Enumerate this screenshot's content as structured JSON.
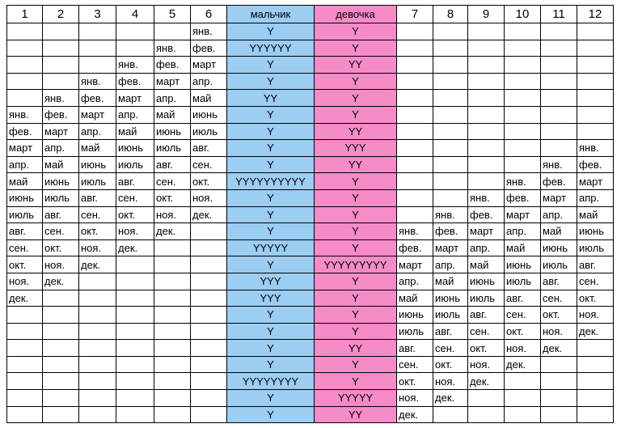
{
  "table": {
    "header": [
      "1",
      "2",
      "3",
      "4",
      "5",
      "6",
      "мальчик",
      "девочка",
      "7",
      "8",
      "9",
      "10",
      "11",
      "12"
    ],
    "rows": [
      [
        null,
        null,
        null,
        null,
        null,
        "янв.",
        "Y",
        "Y",
        null,
        null,
        null,
        null,
        null,
        null
      ],
      [
        null,
        null,
        null,
        null,
        "янв.",
        "фев.",
        "YYYYYY",
        "Y",
        null,
        null,
        null,
        null,
        null,
        null
      ],
      [
        null,
        null,
        null,
        "янв.",
        "фев.",
        "март",
        "Y",
        "YY",
        null,
        null,
        null,
        null,
        null,
        null
      ],
      [
        null,
        null,
        "янв.",
        "фев.",
        "март",
        "апр.",
        "Y",
        "Y",
        null,
        null,
        null,
        null,
        null,
        null
      ],
      [
        null,
        "янв.",
        "фев.",
        "март",
        "апр.",
        "май",
        "YY",
        "Y",
        null,
        null,
        null,
        null,
        null,
        null
      ],
      [
        "янв.",
        "фев.",
        "март",
        "апр.",
        "май",
        "июнь",
        "Y",
        "Y",
        null,
        null,
        null,
        null,
        null,
        null
      ],
      [
        "фев.",
        "март",
        "апр.",
        "май",
        "июнь",
        "июль",
        "Y",
        "YY",
        null,
        null,
        null,
        null,
        null,
        null
      ],
      [
        "март",
        "апр.",
        "май",
        "июнь",
        "июль",
        "авг.",
        "Y",
        "YYY",
        null,
        null,
        null,
        null,
        null,
        "янв."
      ],
      [
        "апр.",
        "май",
        "июнь",
        "июль",
        "авг.",
        "сен.",
        "Y",
        "YY",
        null,
        null,
        null,
        null,
        "янв.",
        "фев."
      ],
      [
        "май",
        "июнь",
        "июль",
        "авг.",
        "сен.",
        "окт.",
        "YYYYYYYYYY",
        "Y",
        null,
        null,
        null,
        "янв.",
        "фев.",
        "март"
      ],
      [
        "июнь",
        "июль",
        "авг.",
        "сен.",
        "окт.",
        "ноя.",
        "Y",
        "Y",
        null,
        null,
        "янв.",
        "фев.",
        "март",
        "апр."
      ],
      [
        "июль",
        "авг.",
        "сен.",
        "окт.",
        "ноя.",
        "дек.",
        "Y",
        "Y",
        null,
        "янв.",
        "фев.",
        "март",
        "апр.",
        "май"
      ],
      [
        "авг.",
        "сен.",
        "окт.",
        "ноя.",
        "дек.",
        null,
        "Y",
        "Y",
        "янв.",
        "фев.",
        "март",
        "апр.",
        "май",
        "июнь"
      ],
      [
        "сен.",
        "окт.",
        "ноя.",
        "дек.",
        null,
        null,
        "YYYYY",
        "Y",
        "фев.",
        "март",
        "апр.",
        "май",
        "июнь",
        "июль"
      ],
      [
        "окт.",
        "ноя.",
        "дек.",
        null,
        null,
        null,
        "Y",
        "YYYYYYYYY",
        "март",
        "апр.",
        "май",
        "июнь",
        "июль",
        "авг."
      ],
      [
        "ноя.",
        "дек.",
        null,
        null,
        null,
        null,
        "YYY",
        "Y",
        "апр.",
        "май",
        "июнь",
        "июль",
        "авг.",
        "сен."
      ],
      [
        "дек.",
        null,
        null,
        null,
        null,
        null,
        "YYY",
        "Y",
        "май",
        "июнь",
        "июль",
        "авг.",
        "сен.",
        "окт."
      ],
      [
        null,
        null,
        null,
        null,
        null,
        null,
        "Y",
        "Y",
        "июнь",
        "июль",
        "авг.",
        "сен.",
        "окт.",
        "ноя."
      ],
      [
        null,
        null,
        null,
        null,
        null,
        null,
        "Y",
        "Y",
        "июль",
        "авг.",
        "сен.",
        "окт.",
        "ноя.",
        "дек."
      ],
      [
        null,
        null,
        null,
        null,
        null,
        null,
        "Y",
        "YY",
        "авг.",
        "сен.",
        "окт.",
        "ноя.",
        "дек.",
        null
      ],
      [
        null,
        null,
        null,
        null,
        null,
        null,
        "Y",
        "Y",
        "сен.",
        "окт.",
        "ноя.",
        "дек.",
        null,
        null
      ],
      [
        null,
        null,
        null,
        null,
        null,
        null,
        "YYYYYYYY",
        "Y",
        "окт.",
        "ноя.",
        "дек.",
        null,
        null,
        null
      ],
      [
        null,
        null,
        null,
        null,
        null,
        null,
        "Y",
        "YYYYY",
        "ноя.",
        "дек.",
        null,
        null,
        null,
        null
      ],
      [
        null,
        null,
        null,
        null,
        null,
        null,
        "Y",
        "YY",
        "дек.",
        null,
        null,
        null,
        null,
        null
      ]
    ]
  }
}
